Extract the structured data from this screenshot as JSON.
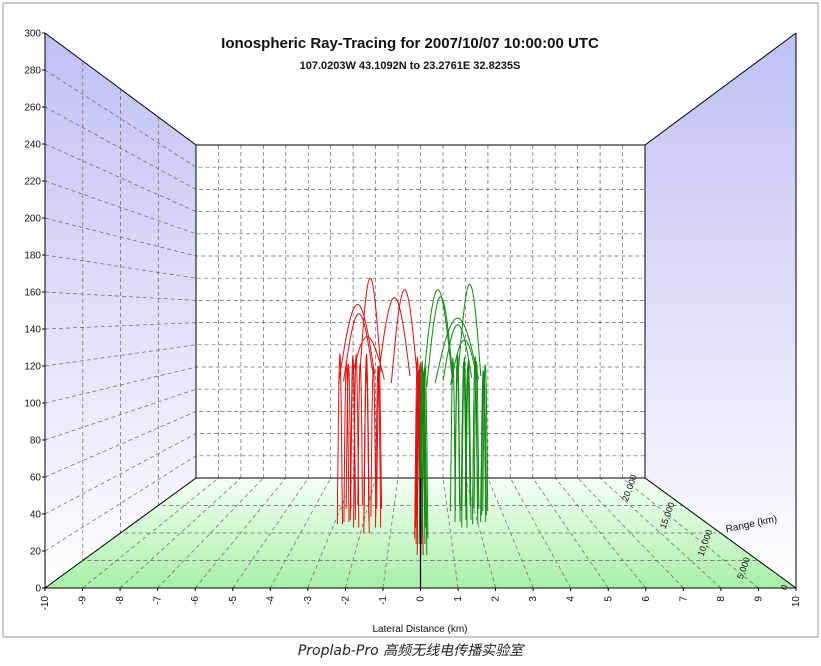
{
  "chart_data": {
    "type": "line",
    "title": "Ionospheric Ray-Tracing for 2007/10/07 10:00:00 UTC",
    "subtitle": "107.0203W 43.1092N to  23.2761E 32.8235S",
    "xlabel": "Lateral Distance (km)",
    "zlabel": "Range (km)",
    "x_ticks": [
      "-10",
      "-9",
      "-8",
      "-7",
      "-6",
      "-5",
      "-4",
      "-3",
      "-2",
      "-1",
      "0",
      "1",
      "2",
      "3",
      "4",
      "5",
      "6",
      "7",
      "8",
      "9",
      "10"
    ],
    "y_ticks": [
      "0",
      "20",
      "40",
      "60",
      "80",
      "100",
      "120",
      "140",
      "160",
      "180",
      "200",
      "220",
      "240",
      "260",
      "280",
      "300"
    ],
    "z_ticks": [
      "0",
      "5,000",
      "10,000",
      "15,000",
      "20,000"
    ],
    "xlim": [
      -10,
      10
    ],
    "ylim": [
      0,
      300
    ],
    "zlim": [
      0,
      20000
    ],
    "grid": true,
    "colors": {
      "series_a": "#dd1111",
      "series_b": "#118811",
      "back_wall_side": "#c8c8f4",
      "floor": "#b4f4b4"
    },
    "series": [
      {
        "color": "#dd1111",
        "peaks": [
          [
            -2.8,
            0.58,
            120
          ],
          [
            -2.7,
            0.72,
            110
          ],
          [
            -2.6,
            0.6,
            115
          ],
          [
            -2.5,
            0.7,
            112
          ],
          [
            -2.4,
            0.62,
            118
          ],
          [
            -2.3,
            0.75,
            110
          ],
          [
            -2.2,
            0.55,
            120
          ],
          [
            -2.0,
            0.7,
            118
          ],
          [
            -1.9,
            0.6,
            112
          ],
          [
            -1.8,
            0.5,
            115
          ],
          [
            -1.7,
            0.65,
            110
          ],
          [
            -1.55,
            0.72,
            108
          ],
          [
            -1.45,
            0.55,
            112
          ],
          [
            -0.1,
            0.45,
            120
          ],
          [
            -0.08,
            0.55,
            108
          ],
          [
            -0.05,
            0.4,
            112
          ],
          [
            -0.03,
            0.65,
            105
          ],
          [
            -0.01,
            0.3,
            118
          ]
        ],
        "arcs": [
          [
            -2.8,
            0.9,
            -1.3,
            0.65,
            130
          ],
          [
            -2.8,
            0.55,
            -1.8,
            0.8,
            155
          ],
          [
            -2.7,
            0.6,
            -2.0,
            0.9,
            148
          ],
          [
            -2.6,
            0.95,
            -1.6,
            0.85,
            178
          ],
          [
            -1.5,
            0.6,
            -0.4,
            0.75,
            160
          ],
          [
            -1.0,
            0.55,
            -0.1,
            0.6,
            165
          ]
        ]
      },
      {
        "color": "#118811",
        "peaks": [
          [
            0.05,
            0.4,
            118
          ],
          [
            0.08,
            0.55,
            110
          ],
          [
            0.1,
            0.3,
            112
          ],
          [
            0.12,
            0.65,
            105
          ],
          [
            0.15,
            0.45,
            115
          ],
          [
            1.2,
            0.7,
            115
          ],
          [
            1.3,
            0.6,
            120
          ],
          [
            1.4,
            0.75,
            110
          ],
          [
            1.5,
            0.55,
            118
          ],
          [
            1.6,
            0.7,
            112
          ],
          [
            1.7,
            0.62,
            115
          ],
          [
            1.8,
            0.75,
            108
          ],
          [
            1.9,
            0.58,
            118
          ],
          [
            2.0,
            0.68,
            110
          ],
          [
            2.1,
            0.72,
            112
          ],
          [
            2.2,
            0.6,
            108
          ],
          [
            2.3,
            0.66,
            105
          ],
          [
            2.4,
            0.7,
            110
          ]
        ],
        "arcs": [
          [
            0.1,
            0.6,
            1.1,
            0.55,
            165
          ],
          [
            0.2,
            0.45,
            1.2,
            0.7,
            160
          ],
          [
            0.5,
            0.55,
            2.1,
            0.65,
            145
          ],
          [
            1.3,
            0.6,
            2.3,
            0.75,
            170
          ],
          [
            0.8,
            0.62,
            1.9,
            0.7,
            140
          ],
          [
            1.0,
            0.5,
            2.0,
            0.6,
            130
          ]
        ]
      }
    ]
  },
  "caption": "Proplab-Pro 高频无线电传播实验室"
}
